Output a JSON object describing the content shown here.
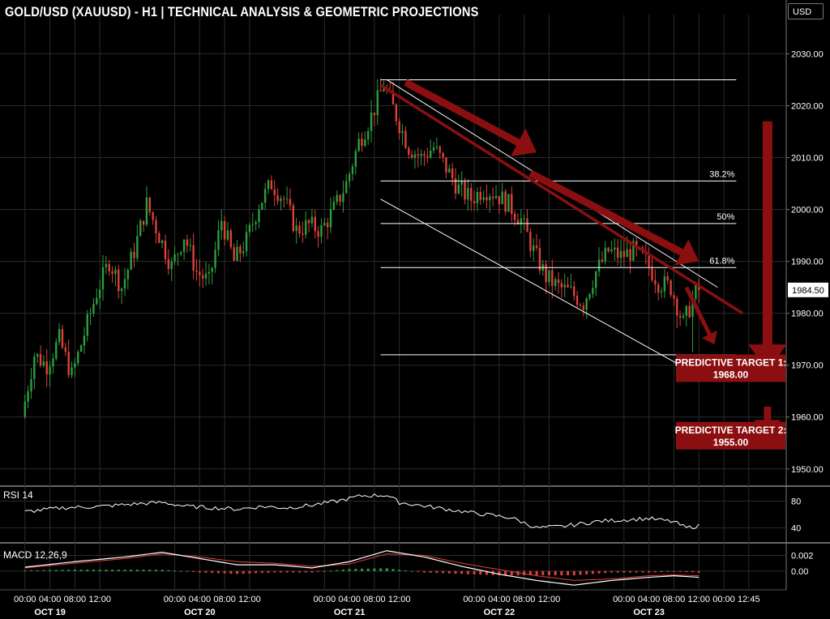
{
  "header": {
    "title": "GOLD/USD (XAUUSD) - H1  |  TECHNICAL ANALYSIS & GEOMETRIC PROJECTIONS",
    "currency": "USD"
  },
  "colors": {
    "background": "#000000",
    "bull": "#2e9e3e",
    "bear": "#e0413a",
    "projection": "#8b0f10",
    "grid": "#2a2a2a",
    "lines": "#ffffff"
  },
  "chart_data": {
    "type": "candlestick",
    "symbol": "XAUUSD",
    "timeframe": "H1",
    "ylim": [
      1947,
      2036
    ],
    "y_ticks": [
      1950,
      1960,
      1970,
      1980,
      1990,
      2000,
      2010,
      2020,
      2030
    ],
    "y_tick_labels": [
      "1950.00",
      "1960.00",
      "1970.00",
      "1980.00",
      "1990.00",
      "2000.00",
      "2010.00",
      "2020.00",
      "2030.00"
    ],
    "current_price": 1984.5,
    "current_price_label": "1984.50",
    "x_ticks": [
      {
        "label": "00:00",
        "hour": 0
      },
      {
        "label": "04:00",
        "hour": 4
      },
      {
        "label": "08:00",
        "hour": 8
      },
      {
        "label": "12:00",
        "hour": 12
      },
      {
        "label": "00:00",
        "hour": 24
      },
      {
        "label": "04:00",
        "hour": 28
      },
      {
        "label": "08:00",
        "hour": 32
      },
      {
        "label": "12:00",
        "hour": 36
      },
      {
        "label": "00:00",
        "hour": 48
      },
      {
        "label": "04:00",
        "hour": 52
      },
      {
        "label": "08:00",
        "hour": 56
      },
      {
        "label": "12:00",
        "hour": 60
      },
      {
        "label": "00:00",
        "hour": 72
      },
      {
        "label": "04:00",
        "hour": 76
      },
      {
        "label": "08:00",
        "hour": 80
      },
      {
        "label": "12:00",
        "hour": 84
      },
      {
        "label": "00:00",
        "hour": 96
      },
      {
        "label": "04:00",
        "hour": 100
      },
      {
        "label": "08:00",
        "hour": 104
      },
      {
        "label": "12:00",
        "hour": 108
      },
      {
        "label": "00:00",
        "hour": 112
      },
      {
        "label": "12:45",
        "hour": 116
      }
    ],
    "day_labels": [
      {
        "label": "OCT 19",
        "hour": 4
      },
      {
        "label": "OCT 20",
        "hour": 28
      },
      {
        "label": "OCT 21",
        "hour": 52
      },
      {
        "label": "OCT 22",
        "hour": 76
      },
      {
        "label": "OCT 23",
        "hour": 100
      }
    ],
    "xlim_hours": [
      -4,
      122
    ],
    "ohlc_key_points": [
      [
        0,
        1960
      ],
      [
        2,
        1972
      ],
      [
        4,
        1970
      ],
      [
        6,
        1975
      ],
      [
        8,
        1968
      ],
      [
        10,
        1976
      ],
      [
        12,
        1984
      ],
      [
        14,
        1990
      ],
      [
        16,
        1985
      ],
      [
        18,
        1992
      ],
      [
        20,
        2001
      ],
      [
        22,
        1995
      ],
      [
        24,
        1989
      ],
      [
        26,
        1995
      ],
      [
        28,
        1988
      ],
      [
        30,
        1986
      ],
      [
        32,
        1998
      ],
      [
        34,
        1990
      ],
      [
        36,
        1994
      ],
      [
        38,
        2001
      ],
      [
        40,
        2005
      ],
      [
        42,
        2002
      ],
      [
        44,
        1996
      ],
      [
        46,
        1997
      ],
      [
        48,
        1996
      ],
      [
        50,
        2000
      ],
      [
        52,
        2005
      ],
      [
        54,
        2013
      ],
      [
        56,
        2018
      ],
      [
        58,
        2024
      ],
      [
        60,
        2018
      ],
      [
        62,
        2012
      ],
      [
        64,
        2010
      ],
      [
        66,
        2012
      ],
      [
        68,
        2008
      ],
      [
        70,
        2004
      ],
      [
        72,
        2002
      ],
      [
        74,
        2004
      ],
      [
        76,
        2003
      ],
      [
        78,
        2001
      ],
      [
        80,
        1998
      ],
      [
        82,
        1992
      ],
      [
        84,
        1987
      ],
      [
        86,
        1985
      ],
      [
        88,
        1984
      ],
      [
        90,
        1982
      ],
      [
        92,
        1988
      ],
      [
        94,
        1992
      ],
      [
        96,
        1991
      ],
      [
        98,
        1992
      ],
      [
        100,
        1990
      ],
      [
        102,
        1986
      ],
      [
        104,
        1985
      ],
      [
        106,
        1978
      ],
      [
        108,
        1984
      ]
    ],
    "last_candle_hour": 108,
    "fibonacci_levels": [
      {
        "price": 2025,
        "label": ""
      },
      {
        "price": 2005.5,
        "label": "38.2%"
      },
      {
        "price": 1997.3,
        "label": "50%"
      },
      {
        "price": 1988.8,
        "label": "61.8%"
      },
      {
        "price": 1972,
        "label": ""
      }
    ],
    "fib_x_range_hours": [
      57,
      114
    ],
    "channel_lines": [
      {
        "from": [
          58,
          2025
        ],
        "to": [
          111,
          1985
        ]
      },
      {
        "from": [
          57,
          2002
        ],
        "to": [
          108,
          1968
        ]
      }
    ],
    "trend_line": {
      "from": [
        57,
        2024
      ],
      "to": [
        115,
        1980
      ]
    },
    "projection_arrows": [
      {
        "from": [
          61,
          2024.5
        ],
        "to": [
          82,
          2011
        ]
      },
      {
        "from": [
          81,
          2007
        ],
        "to": [
          108,
          1990
        ]
      },
      {
        "from": [
          106,
          1985
        ],
        "to": [
          110.5,
          1974
        ]
      },
      {
        "from": [
          119,
          2017
        ],
        "to": [
          119,
          1969
        ]
      },
      {
        "from": [
          119,
          1962
        ],
        "to": [
          119,
          1956
        ]
      }
    ],
    "targets": [
      {
        "line1": "PREDICTIVE TARGET 1:",
        "line2": "1968.00",
        "price": 1968
      },
      {
        "line1": "PREDICTIVE TARGET 2:",
        "line2": "1955.00",
        "price": 1955
      }
    ],
    "rsi": {
      "label": "RSI 14",
      "levels": [
        80,
        40
      ],
      "level_labels": [
        "80",
        "40"
      ],
      "ylim": [
        20,
        100
      ],
      "points": [
        [
          0,
          64
        ],
        [
          6,
          70
        ],
        [
          12,
          72
        ],
        [
          18,
          76
        ],
        [
          22,
          78
        ],
        [
          26,
          72
        ],
        [
          30,
          70
        ],
        [
          34,
          68
        ],
        [
          38,
          72
        ],
        [
          42,
          70
        ],
        [
          46,
          74
        ],
        [
          50,
          80
        ],
        [
          54,
          88
        ],
        [
          58,
          89
        ],
        [
          60,
          78
        ],
        [
          66,
          70
        ],
        [
          72,
          62
        ],
        [
          78,
          55
        ],
        [
          82,
          40
        ],
        [
          86,
          42
        ],
        [
          92,
          50
        ],
        [
          96,
          52
        ],
        [
          100,
          54
        ],
        [
          104,
          49
        ],
        [
          106,
          40
        ],
        [
          108,
          43
        ]
      ]
    },
    "macd": {
      "label": "MACD 12,26,9",
      "level_labels": [
        "0.002",
        "0.00"
      ],
      "levels": [
        0.002,
        0.0
      ],
      "ylim": [
        -0.0024,
        0.0034
      ],
      "macd_line": [
        [
          0,
          0.0005
        ],
        [
          8,
          0.0012
        ],
        [
          16,
          0.0018
        ],
        [
          22,
          0.0024
        ],
        [
          28,
          0.0016
        ],
        [
          34,
          0.0008
        ],
        [
          40,
          0.0008
        ],
        [
          46,
          0.0004
        ],
        [
          52,
          0.0012
        ],
        [
          58,
          0.0026
        ],
        [
          64,
          0.0018
        ],
        [
          70,
          0.0006
        ],
        [
          76,
          -0.0004
        ],
        [
          82,
          -0.0012
        ],
        [
          88,
          -0.0018
        ],
        [
          94,
          -0.0012
        ],
        [
          100,
          -0.0008
        ],
        [
          104,
          -0.0006
        ],
        [
          108,
          -0.0008
        ]
      ],
      "signal_line": [
        [
          0,
          0.0004
        ],
        [
          8,
          0.001
        ],
        [
          16,
          0.0016
        ],
        [
          22,
          0.0022
        ],
        [
          28,
          0.0018
        ],
        [
          34,
          0.0012
        ],
        [
          40,
          0.001
        ],
        [
          46,
          0.0006
        ],
        [
          52,
          0.0009
        ],
        [
          58,
          0.0022
        ],
        [
          64,
          0.002
        ],
        [
          70,
          0.001
        ],
        [
          76,
          0.0002
        ],
        [
          82,
          -0.0006
        ],
        [
          88,
          -0.0012
        ],
        [
          94,
          -0.001
        ],
        [
          100,
          -0.0006
        ],
        [
          104,
          -0.0005
        ],
        [
          108,
          -0.0006
        ]
      ]
    }
  }
}
